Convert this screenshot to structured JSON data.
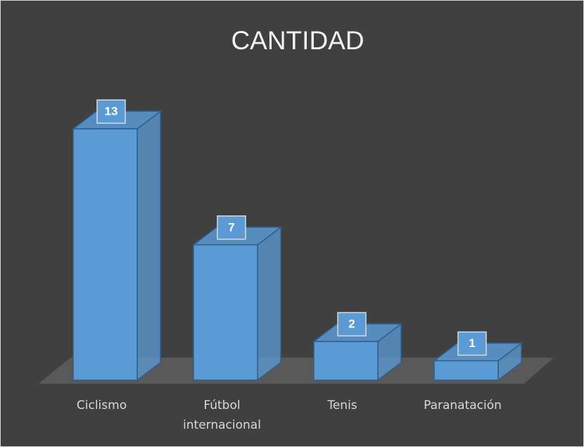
{
  "chart_data": {
    "type": "bar3d",
    "title": "CANTIDAD",
    "categories": [
      "Ciclismo",
      "Fútbol internacional",
      "Tenis",
      "Paranatación"
    ],
    "values": [
      13,
      7,
      2,
      1
    ],
    "color": "#5b9bd5"
  }
}
